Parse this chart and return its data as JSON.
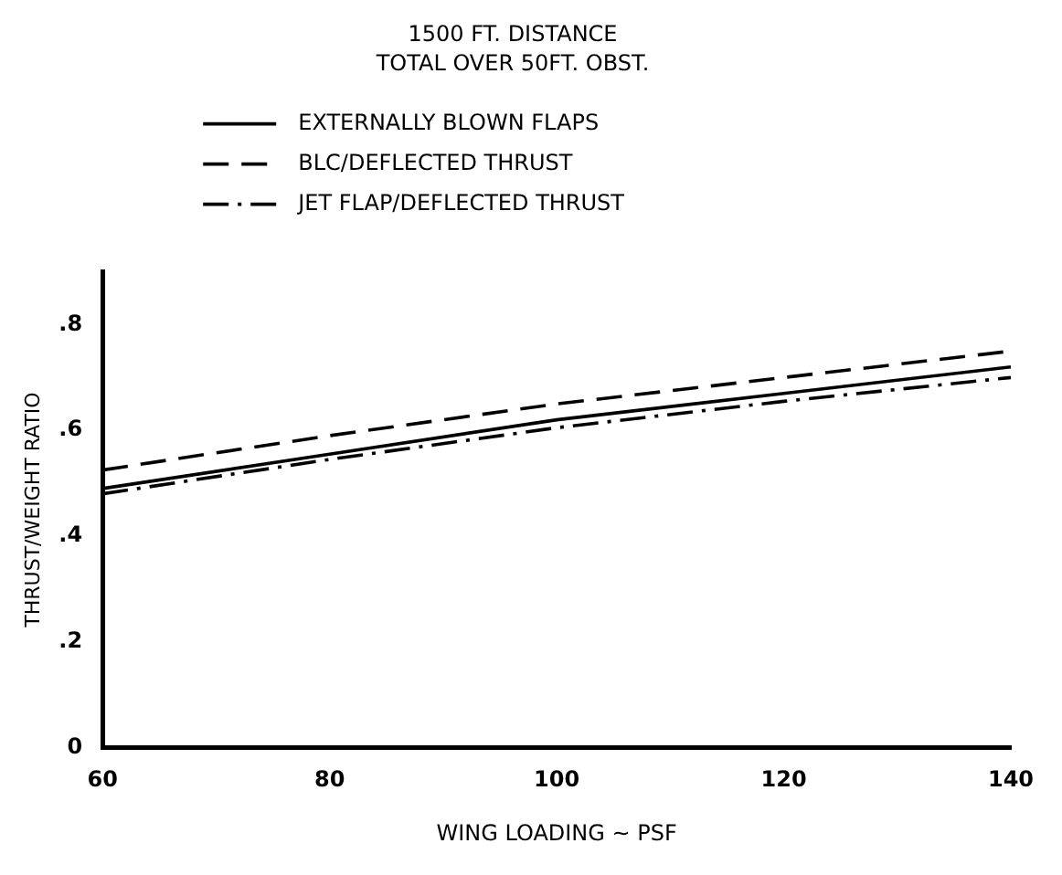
{
  "chart_data": {
    "type": "line",
    "title": "1500 FT. DISTANCE",
    "subtitle": "TOTAL OVER 50FT. OBST.",
    "xlabel": "WING LOADING ~ PSF",
    "ylabel": "THRUST/WEIGHT RATIO",
    "x": [
      60,
      80,
      100,
      120,
      140
    ],
    "series": [
      {
        "name": "EXTERNALLY BLOWN FLAPS",
        "color": "#000000",
        "line_style": "solid",
        "values": [
          0.49,
          0.555,
          0.62,
          0.67,
          0.72
        ]
      },
      {
        "name": "BLC/DEFLECTED THRUST",
        "color": "#000000",
        "line_style": "dashed",
        "values": [
          0.525,
          0.59,
          0.65,
          0.7,
          0.75
        ]
      },
      {
        "name": "JET FLAP/DEFLECTED THRUST",
        "color": "#000000",
        "line_style": "dashdot",
        "values": [
          0.48,
          0.545,
          0.605,
          0.655,
          0.7
        ]
      }
    ],
    "xlim": [
      60,
      140
    ],
    "xticks": [
      60,
      80,
      100,
      120,
      140
    ],
    "ylim": [
      0,
      0.9
    ],
    "yticks": [
      0,
      {
        "value": 0.2,
        "label": ".2"
      },
      {
        "value": 0.4,
        "label": ".4"
      },
      {
        "value": 0.6,
        "label": ".6"
      },
      {
        "value": 0.8,
        "label": ".8"
      }
    ],
    "grid": false,
    "legend": "top",
    "marker": "none"
  }
}
